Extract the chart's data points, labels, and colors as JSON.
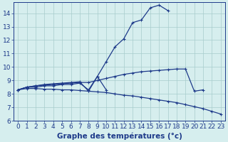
{
  "xlabel": "Graphe des températures (°c)",
  "hours": [
    0,
    1,
    2,
    3,
    4,
    5,
    6,
    7,
    8,
    9,
    10,
    11,
    12,
    13,
    14,
    15,
    16,
    17,
    18,
    19,
    20,
    21,
    22,
    23
  ],
  "line1": [
    8.3,
    8.5,
    8.5,
    8.6,
    8.6,
    8.7,
    8.7,
    8.8,
    8.3,
    9.3,
    10.4,
    11.5,
    12.1,
    13.3,
    13.5,
    14.4,
    14.6,
    14.2,
    null,
    null,
    null,
    null,
    null,
    null
  ],
  "line2": [
    8.3,
    8.5,
    8.6,
    8.7,
    8.75,
    8.8,
    8.85,
    8.9,
    8.2,
    9.3,
    8.3,
    null,
    null,
    null,
    null,
    null,
    null,
    null,
    null,
    null,
    null,
    null,
    null,
    null
  ],
  "line3": [
    8.3,
    8.5,
    8.6,
    8.65,
    8.7,
    8.75,
    8.8,
    8.85,
    8.85,
    9.0,
    9.15,
    9.3,
    9.45,
    9.55,
    9.65,
    9.7,
    9.75,
    9.8,
    9.85,
    9.85,
    8.2,
    8.3,
    null,
    null
  ],
  "line4": [
    8.3,
    8.4,
    8.4,
    8.35,
    8.35,
    8.3,
    8.3,
    8.25,
    8.2,
    8.15,
    8.1,
    8.0,
    7.9,
    7.85,
    7.75,
    7.65,
    7.55,
    7.45,
    7.35,
    7.2,
    7.05,
    6.9,
    6.7,
    6.5
  ],
  "line_color": "#1e3a8a",
  "bg_color": "#d6eeee",
  "grid_color": "#a8cccc",
  "ylim": [
    6,
    14.8
  ],
  "ytick_max": 14,
  "xlim_min": -0.5,
  "xlim_max": 23.5,
  "yticks": [
    6,
    7,
    8,
    9,
    10,
    11,
    12,
    13,
    14
  ],
  "xticks": [
    0,
    1,
    2,
    3,
    4,
    5,
    6,
    7,
    8,
    9,
    10,
    11,
    12,
    13,
    14,
    15,
    16,
    17,
    18,
    19,
    20,
    21,
    22,
    23
  ],
  "tick_fontsize": 6.5,
  "xlabel_fontsize": 7.5
}
